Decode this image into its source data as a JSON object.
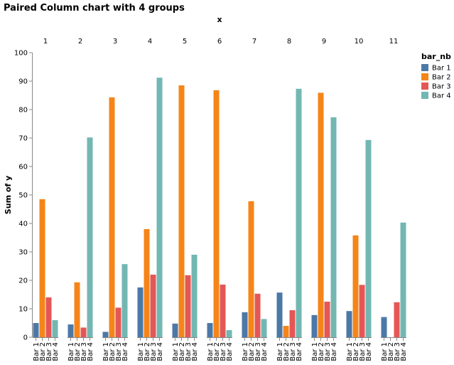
{
  "chart_data": {
    "type": "bar",
    "title": "Paired Column chart with 4 groups",
    "x_label": "x",
    "y_label": "Sum of y",
    "legend_title": "bar_nb",
    "categories": [
      "1",
      "2",
      "3",
      "4",
      "5",
      "6",
      "7",
      "8",
      "9",
      "10",
      "11"
    ],
    "series": [
      {
        "name": "Bar 1",
        "color": "#4c78a8",
        "values": [
          5,
          4.5,
          1.9,
          17.5,
          4.8,
          5,
          8.8,
          15.7,
          7.8,
          9.2,
          7.1
        ]
      },
      {
        "name": "Bar 2",
        "color": "#f58518",
        "values": [
          48.5,
          19.3,
          84.3,
          38,
          88.5,
          86.8,
          47.8,
          4,
          85.9,
          35.8,
          null
        ]
      },
      {
        "name": "Bar 3",
        "color": "#e45756",
        "values": [
          14,
          3.4,
          10.4,
          22,
          21.8,
          18.5,
          15.3,
          9.5,
          12.5,
          18.4,
          12.3
        ]
      },
      {
        "name": "Bar 4",
        "color": "#72b7b2",
        "values": [
          6,
          70.2,
          25.7,
          91.2,
          29,
          2.5,
          6.4,
          87.3,
          77.3,
          69.3,
          40.3
        ]
      }
    ],
    "ylim": [
      0,
      100
    ],
    "yticks": [
      0,
      10,
      20,
      30,
      40,
      50,
      60,
      70,
      80,
      90,
      100
    ],
    "grid": false,
    "legend": "right"
  }
}
